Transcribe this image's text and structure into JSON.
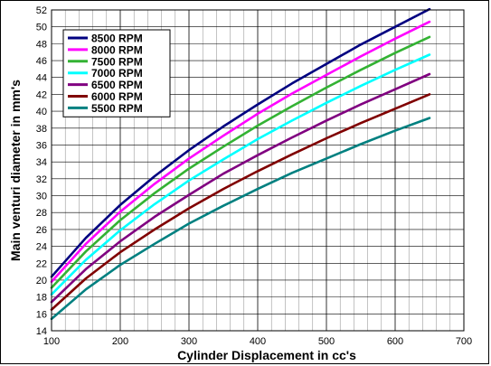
{
  "chart_data": {
    "type": "line",
    "title": "",
    "xlabel": "Cylinder Displacement in cc's",
    "ylabel": "Main venturi diameter in mm's",
    "xlim": [
      100,
      700
    ],
    "ylim": [
      14,
      52
    ],
    "xticks": [
      100,
      200,
      300,
      400,
      500,
      600,
      700
    ],
    "yticks": [
      14,
      16,
      18,
      20,
      22,
      24,
      26,
      28,
      30,
      32,
      34,
      36,
      38,
      40,
      42,
      44,
      46,
      48,
      50,
      52
    ],
    "grid": true,
    "legend_position": "top-left",
    "x": [
      100,
      150,
      200,
      250,
      300,
      350,
      400,
      450,
      500,
      550,
      600,
      650
    ],
    "series": [
      {
        "name": "8500 RPM",
        "color": "#000080",
        "values": [
          20.4,
          25.0,
          28.9,
          32.3,
          35.4,
          38.2,
          40.8,
          43.3,
          45.6,
          47.9,
          50.0,
          52.1
        ]
      },
      {
        "name": "8000 RPM",
        "color": "#ff00ff",
        "values": [
          19.8,
          24.3,
          28.1,
          31.4,
          34.4,
          37.1,
          39.7,
          42.1,
          44.3,
          46.5,
          48.6,
          50.6
        ]
      },
      {
        "name": "7500 RPM",
        "color": "#33b233",
        "values": [
          19.1,
          23.4,
          27.1,
          30.3,
          33.2,
          35.8,
          38.3,
          40.6,
          42.8,
          44.9,
          46.9,
          48.8
        ]
      },
      {
        "name": "7000 RPM",
        "color": "#00ffff",
        "values": [
          18.3,
          22.4,
          25.9,
          29.0,
          31.8,
          34.3,
          36.7,
          38.9,
          41.0,
          43.0,
          44.9,
          46.7
        ]
      },
      {
        "name": "6500 RPM",
        "color": "#800080",
        "values": [
          17.4,
          21.3,
          24.6,
          27.5,
          30.1,
          32.6,
          34.8,
          36.9,
          38.9,
          40.8,
          42.6,
          44.4
        ]
      },
      {
        "name": "6000 RPM",
        "color": "#800000",
        "values": [
          16.5,
          20.2,
          23.3,
          26.0,
          28.5,
          30.8,
          32.9,
          34.9,
          36.8,
          38.6,
          40.3,
          42.0
        ]
      },
      {
        "name": "5500 RPM",
        "color": "#008080",
        "values": [
          15.4,
          18.9,
          21.8,
          24.3,
          26.7,
          28.8,
          30.8,
          32.7,
          34.4,
          36.1,
          37.7,
          39.2
        ]
      }
    ]
  }
}
